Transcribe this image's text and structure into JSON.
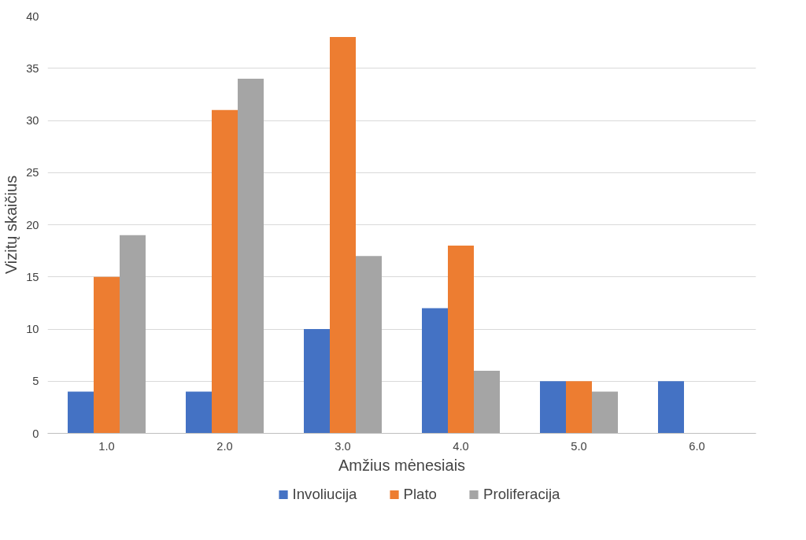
{
  "chart_data": {
    "type": "bar",
    "xlabel": "Amžius mėnesiais",
    "ylabel": "Vizitų skaičius",
    "categories": [
      "1.0",
      "2.0",
      "3.0",
      "4.0",
      "5.0",
      "6.0"
    ],
    "series": [
      {
        "name": "Involiucija",
        "color": "#4472c4",
        "values": [
          4,
          4,
          10,
          12,
          5,
          5
        ]
      },
      {
        "name": "Plato",
        "color": "#ed7d31",
        "values": [
          15,
          31,
          38,
          18,
          5,
          null
        ]
      },
      {
        "name": "Proliferacija",
        "color": "#a5a5a5",
        "values": [
          19,
          34,
          17,
          6,
          4,
          null
        ]
      }
    ],
    "ylim": [
      0,
      40
    ],
    "yticks": [
      0,
      5,
      10,
      15,
      20,
      25,
      30,
      35,
      40
    ],
    "grid": "y",
    "legend": "bottom"
  }
}
